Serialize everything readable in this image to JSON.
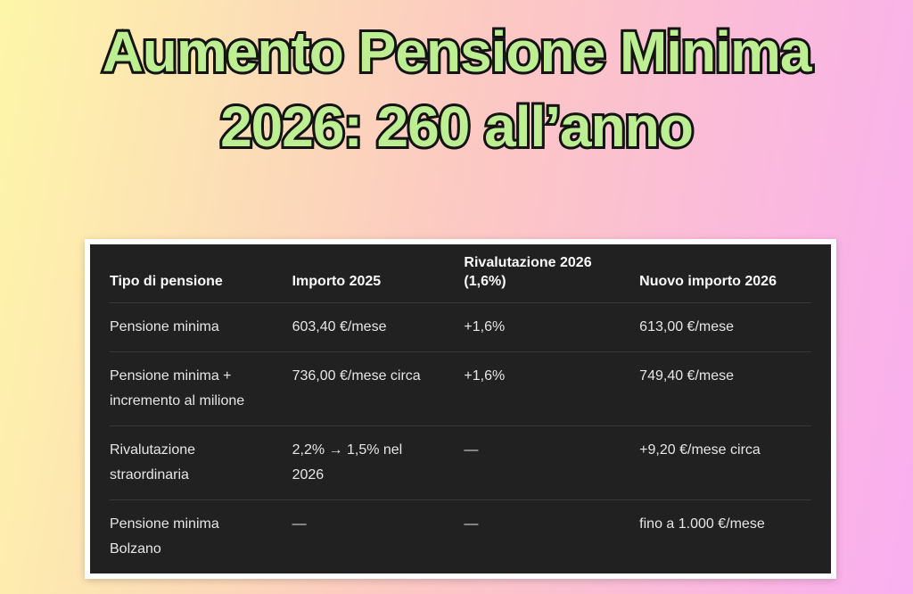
{
  "page": {
    "title_line1": "Aumento Pensione Minima",
    "title_line2": "2026: 260 all’anno"
  },
  "colors": {
    "background_left": "#fdf6a9",
    "background_mid": "#fcc9c2",
    "background_right": "#f9aeef",
    "title_fill": "#bdee92",
    "title_outline": "#141414",
    "card_frame": "#ffffff",
    "table_background": "#212121",
    "header_text": "#fafafa",
    "cell_text": "#e6e6e6",
    "divider": "#3a3a3a"
  },
  "chart_data": {
    "type": "table",
    "title": "Aumento Pensione Minima 2026: 260 all’anno",
    "columns": [
      "Tipo di pensione",
      "Importo 2025",
      "Rivalutazione 2026 (1,6%)",
      "Nuovo importo 2026"
    ],
    "rows": [
      [
        "Pensione minima",
        "603,40 €/mese",
        "+1,6%",
        "613,00 €/mese"
      ],
      [
        "Pensione minima + incremento al milione",
        "736,00 €/mese circa",
        "+1,6%",
        "749,40 €/mese"
      ],
      [
        "Rivalutazione straordinaria",
        "2,2% → 1,5% nel 2026",
        "—",
        "+9,20 €/mese circa"
      ],
      [
        "Pensione minima Bolzano",
        "—",
        "—",
        "fino a 1.000 €/mese"
      ]
    ]
  }
}
